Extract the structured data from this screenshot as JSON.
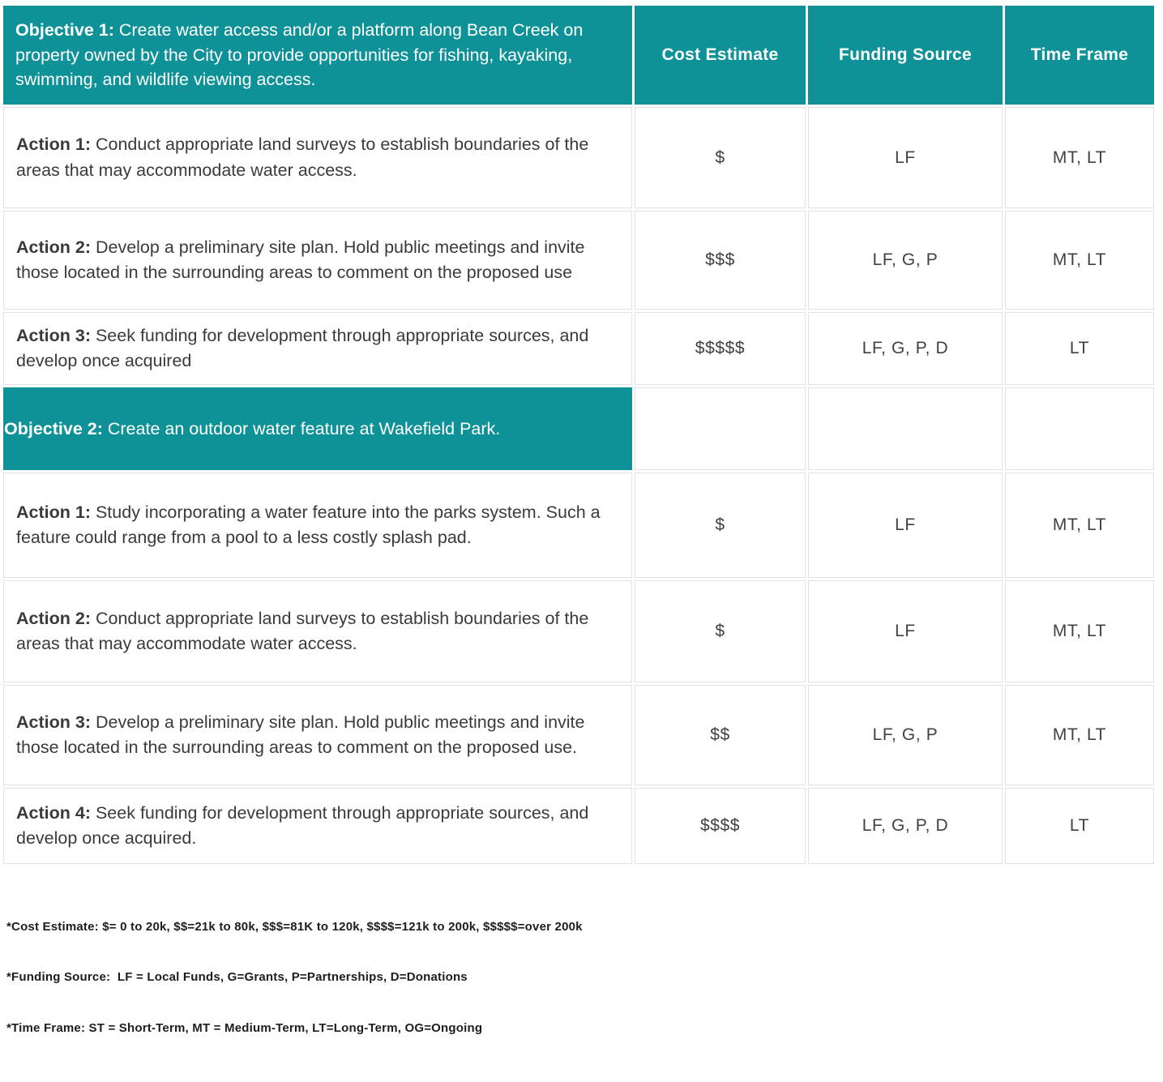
{
  "accent_color": "#0f9198",
  "border_color": "#e2e2e2",
  "header": {
    "objective_label": "Objective 1:",
    "objective_text": "Create water access and/or a platform along Bean Creek on property owned by the City to provide opportunities for fishing, kayaking, swimming, and wildlife viewing access.",
    "columns": {
      "cost": "Cost Estimate",
      "funding": "Funding Source",
      "time": "Time Frame"
    }
  },
  "objective1_rows": [
    {
      "label": "Action 1:",
      "text": "Conduct appropriate land surveys to establish boundaries of the areas that may accommodate water access.",
      "cost": "$",
      "funding": "LF",
      "timeframe": "MT, LT"
    },
    {
      "label": "Action 2:",
      "text": "Develop a preliminary site plan. Hold public meetings and invite those located in the surrounding areas to comment on the proposed use",
      "cost": "$$$",
      "funding": "LF, G, P",
      "timeframe": "MT, LT"
    },
    {
      "label": "Action 3:",
      "text": "Seek funding for development through appropriate sources, and develop once acquired",
      "cost": "$$$$$",
      "funding": "LF, G, P, D",
      "timeframe": "LT"
    }
  ],
  "objective2": {
    "label": "Objective 2:",
    "text": "Create an outdoor water feature at Wakefield Park."
  },
  "objective2_rows": [
    {
      "label": "Action 1:",
      "text": "Study incorporating a water feature into the parks system. Such a feature could range from a pool to a less costly splash pad.",
      "cost": "$",
      "funding": "LF",
      "timeframe": "MT, LT"
    },
    {
      "label": "Action 2:",
      "text": "Conduct appropriate land surveys to establish boundaries of the areas that may accommodate water access.",
      "cost": "$",
      "funding": "LF",
      "timeframe": "MT, LT"
    },
    {
      "label": "Action 3:",
      "text": "Develop a preliminary site plan. Hold public meetings and invite those located in the surrounding areas to comment on the proposed use.",
      "cost": "$$",
      "funding": "LF, G, P",
      "timeframe": "MT, LT"
    },
    {
      "label": "Action 4:",
      "text": "Seek funding for development through appropriate sources, and develop once acquired.",
      "cost": "$$$$",
      "funding": "LF, G, P, D",
      "timeframe": "LT"
    }
  ],
  "footnotes": {
    "cost": "*Cost Estimate: $= 0 to 20k, $$=21k to 80k, $$$=81K to 120k, $$$$=121k to 200k, $$$$$=over 200k",
    "funding": "*Funding Source:  LF = Local Funds, G=Grants, P=Partnerships, D=Donations",
    "time": "*Time Frame: ST = Short-Term, MT = Medium-Term, LT=Long-Term, OG=Ongoing"
  }
}
